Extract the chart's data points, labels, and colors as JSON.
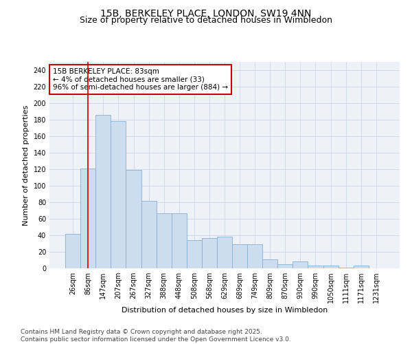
{
  "title_line1": "15B, BERKELEY PLACE, LONDON, SW19 4NN",
  "title_line2": "Size of property relative to detached houses in Wimbledon",
  "xlabel": "Distribution of detached houses by size in Wimbledon",
  "ylabel": "Number of detached properties",
  "bar_color": "#ccddf0",
  "bar_edge_color": "#8ab0d0",
  "background_color": "#eef1f8",
  "grid_color": "#c8cfe8",
  "annotation_text": "15B BERKELEY PLACE: 83sqm\n← 4% of detached houses are smaller (33)\n96% of semi-detached houses are larger (884) →",
  "annotation_box_color": "#cc0000",
  "vline_x": 1,
  "vline_color": "#cc0000",
  "categories": [
    "26sqm",
    "86sqm",
    "147sqm",
    "207sqm",
    "267sqm",
    "327sqm",
    "388sqm",
    "448sqm",
    "508sqm",
    "568sqm",
    "629sqm",
    "689sqm",
    "749sqm",
    "809sqm",
    "870sqm",
    "930sqm",
    "990sqm",
    "1050sqm",
    "1111sqm",
    "1171sqm",
    "1231sqm"
  ],
  "values": [
    42,
    121,
    186,
    178,
    119,
    82,
    67,
    67,
    34,
    37,
    38,
    29,
    29,
    11,
    5,
    8,
    3,
    3,
    1,
    3,
    0
  ],
  "ylim": [
    0,
    250
  ],
  "yticks": [
    0,
    20,
    40,
    60,
    80,
    100,
    120,
    140,
    160,
    180,
    200,
    220,
    240
  ],
  "footer_line1": "Contains HM Land Registry data © Crown copyright and database right 2025.",
  "footer_line2": "Contains public sector information licensed under the Open Government Licence v3.0.",
  "title_fontsize": 10,
  "subtitle_fontsize": 9,
  "axis_label_fontsize": 8,
  "tick_fontsize": 7,
  "footer_fontsize": 6.5,
  "annotation_fontsize": 7.5
}
